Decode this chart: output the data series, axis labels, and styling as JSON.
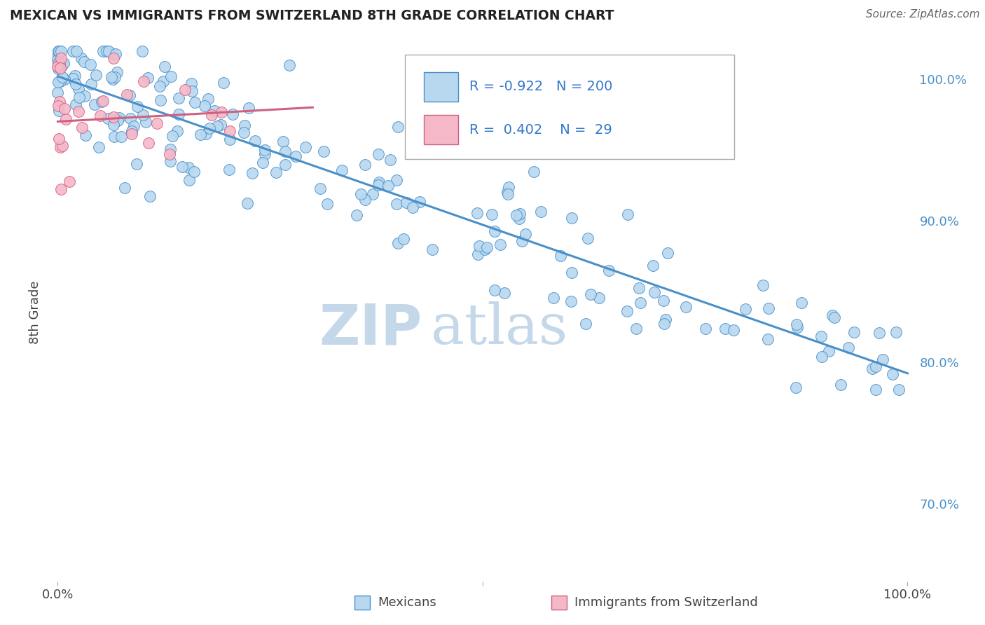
{
  "title": "MEXICAN VS IMMIGRANTS FROM SWITZERLAND 8TH GRADE CORRELATION CHART",
  "source": "Source: ZipAtlas.com",
  "ylabel": "8th Grade",
  "legend_entries": [
    {
      "label": "Mexicans",
      "R": -0.922,
      "N": 200,
      "color": "#b8d8f0",
      "edge_color": "#4a90c8"
    },
    {
      "label": "Immigrants from Switzerland",
      "R": 0.402,
      "N": 29,
      "color": "#f5b8c8",
      "edge_color": "#d06080"
    }
  ],
  "blue_line": {
    "x0": 0.0,
    "x1": 1.0,
    "y0": 1.002,
    "y1": 0.792
  },
  "pink_line": {
    "x0": 0.0,
    "x1": 0.3,
    "y0": 0.97,
    "y1": 0.98
  },
  "xlim": [
    -0.01,
    1.01
  ],
  "ylim": [
    0.645,
    1.025
  ],
  "right_yticks": [
    0.7,
    0.8,
    0.9,
    1.0
  ],
  "right_yticklabels": [
    "70.0%",
    "80.0%",
    "90.0%",
    "100.0%"
  ],
  "grid_color": "#cccccc",
  "background_color": "#ffffff",
  "watermark_zip": "ZIP",
  "watermark_atlas": "atlas",
  "watermark_color": "#c5d8ea"
}
